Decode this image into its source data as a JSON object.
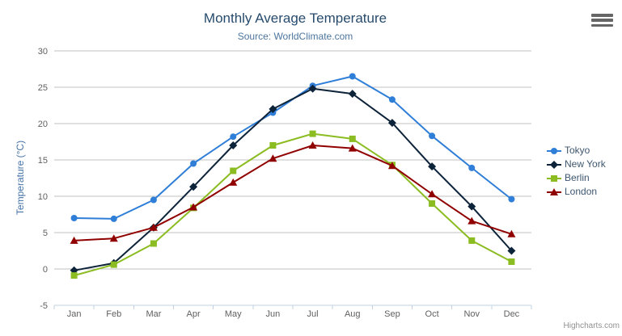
{
  "page": {
    "credits": "Highcharts.com"
  },
  "icons": {
    "export_menu": "hamburger-icon"
  },
  "colors": {
    "background": "#FFFFFF",
    "title": "#274b6d",
    "subtitle": "#4d759e",
    "yaxis_title": "#4572A7",
    "axis_labels": "#606060",
    "grid_line": "#C0C0C0",
    "axis_line": "#C0D0E0",
    "legend_text": "#3E576F",
    "credits": "#909090",
    "export_icon": "#666666"
  },
  "chart_data": {
    "type": "line",
    "title": "Monthly Average Temperature",
    "subtitle": "Source: WorldClimate.com",
    "xlabel": "",
    "ylabel": "Temperature (°C)",
    "ylim": [
      -5,
      30
    ],
    "ytick_step": 5,
    "grid": true,
    "legend_position": "right-middle-vertical",
    "categories": [
      "Jan",
      "Feb",
      "Mar",
      "Apr",
      "May",
      "Jun",
      "Jul",
      "Aug",
      "Sep",
      "Oct",
      "Nov",
      "Dec"
    ],
    "series": [
      {
        "name": "Tokyo",
        "color": "#2f7ed8",
        "marker": "circle",
        "values": [
          7.0,
          6.9,
          9.5,
          14.5,
          18.2,
          21.5,
          25.2,
          26.5,
          23.3,
          18.3,
          13.9,
          9.6
        ]
      },
      {
        "name": "New York",
        "color": "#0d233a",
        "marker": "diamond",
        "values": [
          -0.2,
          0.8,
          5.7,
          11.3,
          17.0,
          22.0,
          24.8,
          24.1,
          20.1,
          14.1,
          8.6,
          2.5
        ]
      },
      {
        "name": "Berlin",
        "color": "#8bbc21",
        "marker": "square",
        "values": [
          -0.9,
          0.6,
          3.5,
          8.4,
          13.5,
          17.0,
          18.6,
          17.9,
          14.3,
          9.0,
          3.9,
          1.0
        ]
      },
      {
        "name": "London",
        "color": "#910000",
        "marker": "triangle",
        "values": [
          3.9,
          4.2,
          5.7,
          8.5,
          11.9,
          15.2,
          17.0,
          16.6,
          14.2,
          10.3,
          6.6,
          4.8
        ]
      }
    ]
  }
}
